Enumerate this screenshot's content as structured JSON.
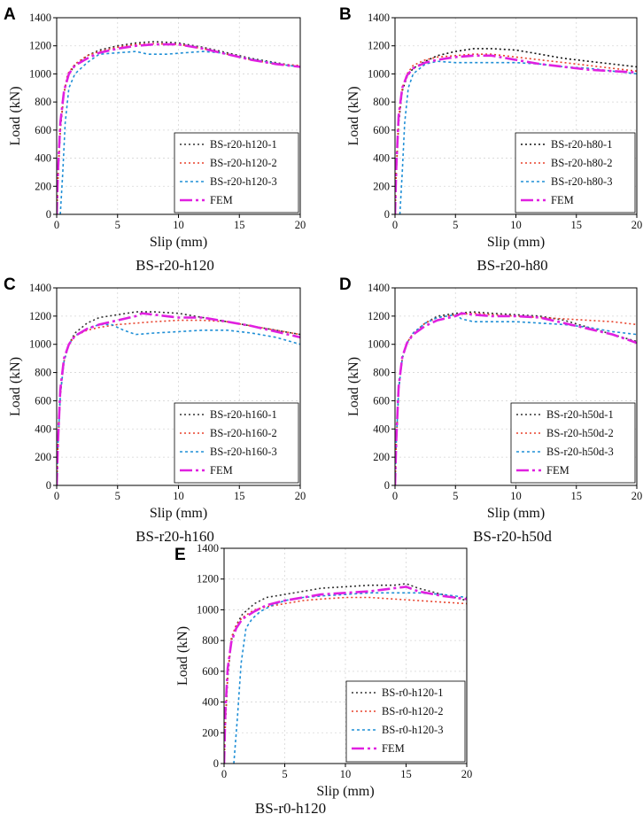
{
  "chart_data": [
    {
      "type": "line",
      "panel": "A",
      "caption": "BS-r20-h120",
      "xlabel": "Slip (mm)",
      "ylabel": "Load (kN)",
      "xlim": [
        0,
        20
      ],
      "ylim": [
        0,
        1400
      ],
      "xticks": [
        0,
        5,
        10,
        15,
        20
      ],
      "yticks": [
        0,
        200,
        400,
        600,
        800,
        1000,
        1200,
        1400
      ],
      "legend_position": "bottom-right",
      "series": [
        {
          "name": "BS-r20-h120-1",
          "color": "#333333",
          "x": [
            0,
            0.1,
            0.3,
            0.6,
            0.9,
            1.5,
            2.5,
            3.5,
            5,
            6.5,
            8,
            10,
            12,
            14,
            16,
            18,
            20
          ],
          "y": [
            0,
            250,
            600,
            860,
            990,
            1060,
            1130,
            1170,
            1200,
            1220,
            1230,
            1220,
            1190,
            1150,
            1110,
            1080,
            1050
          ]
        },
        {
          "name": "BS-r20-h120-2",
          "color": "#e8402a",
          "x": [
            0,
            0.1,
            0.3,
            0.6,
            0.9,
            1.5,
            2.5,
            3.5,
            5,
            6.5,
            8,
            10,
            12,
            14,
            16,
            18,
            20
          ],
          "y": [
            0,
            260,
            620,
            870,
            1000,
            1070,
            1130,
            1160,
            1190,
            1210,
            1215,
            1210,
            1180,
            1140,
            1100,
            1070,
            1060
          ]
        },
        {
          "name": "BS-r20-h120-3",
          "color": "#1f8fd6",
          "x": [
            0.3,
            0.5,
            0.7,
            1,
            1.5,
            2.5,
            3.5,
            5,
            6.5,
            7.5,
            9,
            10.5,
            12,
            13.5,
            15,
            17,
            19,
            20
          ],
          "y": [
            0,
            300,
            650,
            900,
            1000,
            1080,
            1140,
            1150,
            1160,
            1140,
            1140,
            1150,
            1160,
            1150,
            1120,
            1090,
            1060,
            1050
          ]
        },
        {
          "name": "FEM",
          "color": "#e020e0",
          "x": [
            0,
            0.1,
            0.3,
            0.6,
            1,
            1.5,
            2.5,
            3.5,
            5,
            6.5,
            8,
            10,
            12,
            14,
            16,
            18,
            20
          ],
          "y": [
            0,
            300,
            650,
            880,
            1000,
            1060,
            1110,
            1150,
            1180,
            1200,
            1210,
            1210,
            1180,
            1140,
            1100,
            1070,
            1050
          ]
        }
      ]
    },
    {
      "type": "line",
      "panel": "B",
      "caption": "BS-r20-h80",
      "xlabel": "Slip (mm)",
      "ylabel": "Load (kN)",
      "xlim": [
        0,
        20
      ],
      "ylim": [
        0,
        1400
      ],
      "xticks": [
        0,
        5,
        10,
        15,
        20
      ],
      "yticks": [
        0,
        200,
        400,
        600,
        800,
        1000,
        1200,
        1400
      ],
      "legend_position": "bottom-right",
      "series": [
        {
          "name": "BS-r20-h80-1",
          "color": "#111111",
          "x": [
            0,
            0.1,
            0.3,
            0.6,
            1,
            1.5,
            2.5,
            3.5,
            5,
            6.5,
            8,
            10,
            12,
            14,
            16,
            18,
            20
          ],
          "y": [
            0,
            300,
            650,
            880,
            980,
            1040,
            1090,
            1130,
            1160,
            1180,
            1180,
            1170,
            1140,
            1110,
            1090,
            1070,
            1050
          ]
        },
        {
          "name": "BS-r20-h80-2",
          "color": "#e8402a",
          "x": [
            0,
            0.1,
            0.3,
            0.6,
            1,
            1.5,
            2.5,
            3.5,
            5,
            6.5,
            8,
            10,
            12,
            14,
            16,
            18,
            20
          ],
          "y": [
            0,
            320,
            680,
            900,
            1000,
            1060,
            1100,
            1120,
            1130,
            1140,
            1140,
            1120,
            1100,
            1080,
            1060,
            1040,
            1020
          ]
        },
        {
          "name": "BS-r20-h80-3",
          "color": "#1f8fd6",
          "x": [
            0.4,
            0.6,
            0.8,
            1.1,
            1.5,
            2.5,
            3.5,
            5,
            6.5,
            8,
            10,
            12,
            14,
            16,
            18,
            20
          ],
          "y": [
            0,
            300,
            650,
            900,
            1000,
            1070,
            1090,
            1080,
            1080,
            1080,
            1080,
            1070,
            1050,
            1040,
            1020,
            1000
          ]
        },
        {
          "name": "FEM",
          "color": "#e020e0",
          "x": [
            0,
            0.1,
            0.3,
            0.6,
            1,
            1.5,
            2.5,
            3.5,
            5,
            6.5,
            8,
            10,
            12,
            14,
            16,
            18,
            20
          ],
          "y": [
            0,
            330,
            700,
            900,
            990,
            1040,
            1080,
            1100,
            1120,
            1130,
            1130,
            1100,
            1070,
            1050,
            1030,
            1020,
            1010
          ]
        }
      ]
    },
    {
      "type": "line",
      "panel": "C",
      "caption": "BS-r20-h160",
      "xlabel": "Slip (mm)",
      "ylabel": "Load (kN)",
      "xlim": [
        0,
        20
      ],
      "ylim": [
        0,
        1400
      ],
      "xticks": [
        0,
        5,
        10,
        15,
        20
      ],
      "yticks": [
        0,
        200,
        400,
        600,
        800,
        1000,
        1200,
        1400
      ],
      "legend_position": "bottom-right",
      "series": [
        {
          "name": "BS-r20-h160-1",
          "color": "#333333",
          "x": [
            0,
            0.1,
            0.3,
            0.6,
            1,
            1.5,
            2.5,
            3.5,
            5,
            6.5,
            8,
            10,
            12,
            14,
            16,
            18,
            20
          ],
          "y": [
            0,
            280,
            640,
            880,
            1000,
            1080,
            1150,
            1190,
            1210,
            1230,
            1230,
            1220,
            1190,
            1160,
            1130,
            1100,
            1070
          ]
        },
        {
          "name": "BS-r20-h160-2",
          "color": "#e8402a",
          "x": [
            0,
            0.1,
            0.3,
            0.6,
            1,
            1.5,
            2.5,
            3.5,
            5,
            6.5,
            8,
            10,
            12,
            14,
            16,
            18,
            20
          ],
          "y": [
            0,
            280,
            640,
            880,
            1000,
            1060,
            1100,
            1120,
            1140,
            1150,
            1160,
            1170,
            1170,
            1160,
            1130,
            1100,
            1070
          ]
        },
        {
          "name": "BS-r20-h160-3",
          "color": "#1f8fd6",
          "x": [
            0,
            0.1,
            0.3,
            0.6,
            1,
            1.5,
            2.5,
            3.5,
            4.5,
            5.5,
            6.5,
            8,
            10,
            12,
            14,
            16,
            18,
            20
          ],
          "y": [
            0,
            280,
            640,
            880,
            1000,
            1060,
            1110,
            1140,
            1140,
            1100,
            1070,
            1080,
            1090,
            1100,
            1100,
            1080,
            1050,
            1000
          ]
        },
        {
          "name": "FEM",
          "color": "#e020e0",
          "x": [
            0,
            0.1,
            0.3,
            0.6,
            1,
            1.5,
            2.5,
            3.5,
            5,
            6.5,
            7,
            8,
            10,
            12,
            14,
            16,
            18,
            20
          ],
          "y": [
            0,
            300,
            680,
            900,
            1000,
            1060,
            1110,
            1140,
            1170,
            1200,
            1220,
            1210,
            1190,
            1190,
            1160,
            1130,
            1090,
            1050
          ]
        }
      ]
    },
    {
      "type": "line",
      "panel": "D",
      "caption": "BS-r20-h50d",
      "xlabel": "Slip (mm)",
      "ylabel": "Load (kN)",
      "xlim": [
        0,
        20
      ],
      "ylim": [
        0,
        1400
      ],
      "xticks": [
        0,
        5,
        10,
        15,
        20
      ],
      "yticks": [
        0,
        200,
        400,
        600,
        800,
        1000,
        1200,
        1400
      ],
      "legend_position": "bottom-right",
      "series": [
        {
          "name": "BS-r20-h50d-1",
          "color": "#333333",
          "x": [
            0,
            0.1,
            0.3,
            0.6,
            1,
            1.5,
            2.5,
            3.5,
            5,
            6.5,
            8,
            10,
            12,
            14,
            16,
            18,
            20
          ],
          "y": [
            0,
            300,
            680,
            900,
            1010,
            1080,
            1150,
            1200,
            1220,
            1230,
            1220,
            1210,
            1200,
            1170,
            1120,
            1070,
            1020
          ]
        },
        {
          "name": "BS-r20-h50d-2",
          "color": "#e8402a",
          "x": [
            0,
            0.1,
            0.3,
            0.6,
            1,
            1.5,
            2.5,
            3.5,
            5,
            6.5,
            8,
            10,
            12,
            14,
            16,
            18,
            20
          ],
          "y": [
            0,
            300,
            680,
            900,
            1010,
            1080,
            1150,
            1190,
            1210,
            1220,
            1210,
            1200,
            1190,
            1180,
            1170,
            1160,
            1140
          ]
        },
        {
          "name": "BS-r20-h50d-3",
          "color": "#1f8fd6",
          "x": [
            0,
            0.1,
            0.3,
            0.6,
            1,
            1.5,
            2.5,
            3.5,
            5,
            5.5,
            6.5,
            8,
            10,
            12,
            14,
            16,
            18,
            20
          ],
          "y": [
            0,
            300,
            680,
            900,
            1010,
            1080,
            1150,
            1190,
            1210,
            1180,
            1160,
            1160,
            1160,
            1150,
            1140,
            1120,
            1090,
            1070
          ]
        },
        {
          "name": "FEM",
          "color": "#e020e0",
          "x": [
            0,
            0.1,
            0.3,
            0.6,
            1,
            1.5,
            2.5,
            3.5,
            5,
            5.5,
            6.5,
            8,
            10,
            12,
            14,
            16,
            18,
            20
          ],
          "y": [
            0,
            320,
            700,
            910,
            1010,
            1070,
            1130,
            1170,
            1200,
            1220,
            1210,
            1200,
            1200,
            1190,
            1150,
            1110,
            1070,
            1010
          ]
        }
      ]
    },
    {
      "type": "line",
      "panel": "E",
      "caption": "BS-r0-h120",
      "xlabel": "Slip (mm)",
      "ylabel": "Load (kN)",
      "xlim": [
        0,
        20
      ],
      "ylim": [
        0,
        1400
      ],
      "xticks": [
        0,
        5,
        10,
        15,
        20
      ],
      "yticks": [
        0,
        200,
        400,
        600,
        800,
        1000,
        1200,
        1400
      ],
      "legend_position": "bottom-right",
      "series": [
        {
          "name": "BS-r0-h120-1",
          "color": "#333333",
          "x": [
            0,
            0.1,
            0.3,
            0.6,
            1,
            1.5,
            2.5,
            3.5,
            5,
            6.5,
            8,
            10,
            12,
            14,
            15,
            16,
            18,
            20
          ],
          "y": [
            0,
            250,
            560,
            800,
            900,
            970,
            1040,
            1080,
            1100,
            1120,
            1140,
            1150,
            1160,
            1160,
            1170,
            1140,
            1100,
            1060
          ]
        },
        {
          "name": "BS-r0-h120-2",
          "color": "#e8402a",
          "x": [
            0,
            0.1,
            0.3,
            0.6,
            1,
            1.5,
            2.5,
            3.5,
            5,
            6.5,
            8,
            10,
            12,
            14,
            16,
            18,
            20
          ],
          "y": [
            0,
            260,
            580,
            820,
            900,
            950,
            1000,
            1020,
            1040,
            1060,
            1070,
            1080,
            1080,
            1070,
            1060,
            1050,
            1040
          ]
        },
        {
          "name": "BS-r0-h120-3",
          "color": "#1f8fd6",
          "x": [
            0.8,
            1.1,
            1.4,
            1.8,
            2.3,
            3,
            4,
            5,
            6.5,
            8,
            10,
            12,
            14,
            16,
            18,
            20
          ],
          "y": [
            0,
            300,
            650,
            880,
            940,
            990,
            1030,
            1060,
            1080,
            1090,
            1100,
            1110,
            1110,
            1110,
            1100,
            1080
          ]
        },
        {
          "name": "FEM",
          "color": "#e020e0",
          "x": [
            0,
            0.1,
            0.3,
            0.6,
            1,
            1.5,
            2.5,
            3.5,
            5,
            6.5,
            8,
            10,
            12,
            14,
            15,
            16,
            18,
            20
          ],
          "y": [
            0,
            330,
            620,
            790,
            880,
            940,
            990,
            1030,
            1060,
            1080,
            1100,
            1110,
            1120,
            1140,
            1150,
            1120,
            1090,
            1070
          ]
        }
      ]
    }
  ]
}
